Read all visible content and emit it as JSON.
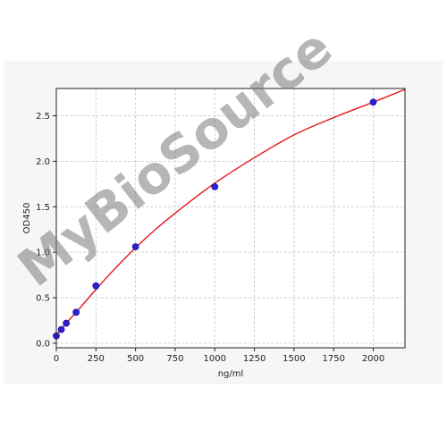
{
  "chart_data": {
    "type": "scatter",
    "title": "",
    "xlabel": "ng/ml",
    "ylabel": "OD450",
    "xlim": [
      0,
      2200
    ],
    "ylim": [
      -0.05,
      2.8
    ],
    "x_ticks": [
      0,
      250,
      500,
      750,
      1000,
      1250,
      1500,
      1750,
      2000
    ],
    "y_ticks": [
      0.0,
      0.5,
      1.0,
      1.5,
      2.0,
      2.5
    ],
    "x_tick_labels": [
      "0",
      "250",
      "500",
      "750",
      "1000",
      "1250",
      "1500",
      "1750",
      "2000"
    ],
    "y_tick_labels": [
      "0.0",
      "0.5",
      "1.0",
      "1.5",
      "2.0",
      "2.5"
    ],
    "grid": true,
    "series": [
      {
        "type": "scatter",
        "color": "#2b1fd1",
        "x": [
          0,
          31.25,
          62.5,
          125,
          250,
          500,
          1000,
          2000
        ],
        "y": [
          0.08,
          0.15,
          0.22,
          0.34,
          0.63,
          1.06,
          1.72,
          2.65
        ]
      },
      {
        "type": "line",
        "color": "#e8141e",
        "x": [
          0,
          62.5,
          125,
          250,
          375,
          500,
          625,
          750,
          1000,
          1250,
          1500,
          1750,
          2000,
          2200
        ],
        "y": [
          0.09,
          0.22,
          0.34,
          0.59,
          0.83,
          1.05,
          1.25,
          1.43,
          1.76,
          2.04,
          2.29,
          2.48,
          2.65,
          2.79
        ]
      }
    ]
  },
  "watermark": "MyBioSource"
}
